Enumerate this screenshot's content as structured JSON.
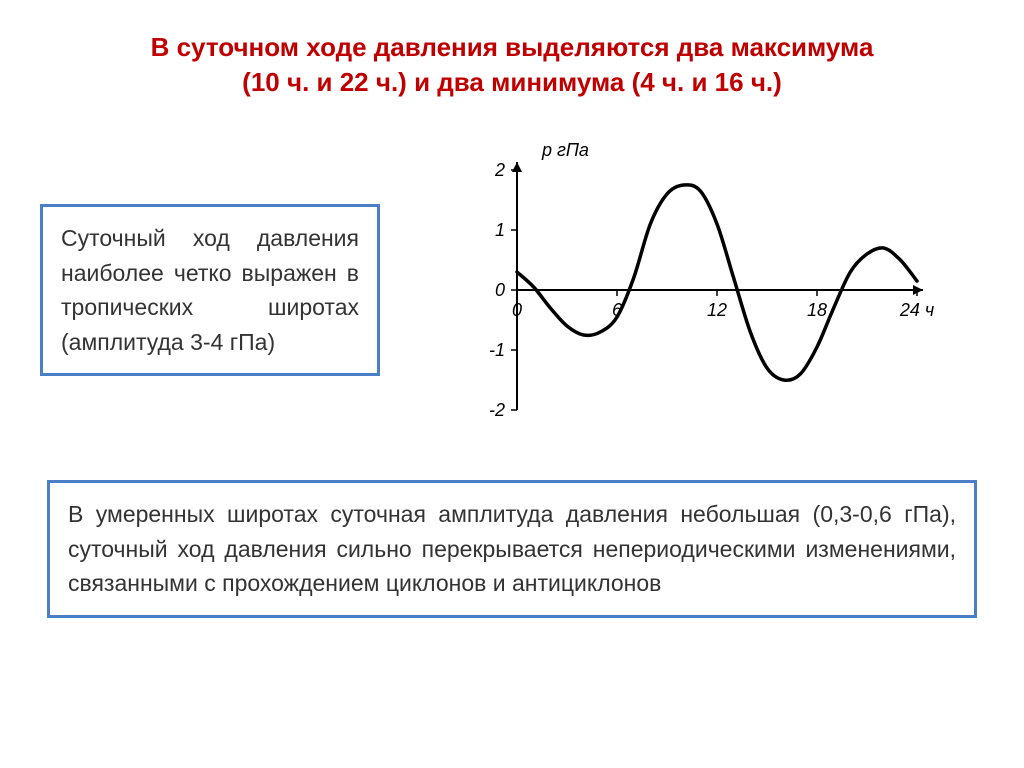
{
  "title_line1": "В суточном ходе давления выделяются два максимума",
  "title_line2": "(10 ч. и 22 ч.) и два минимума (4 ч. и 16 ч.)",
  "box_left": "Суточный ход давления наиболее четко выражен в тропических широтах (амплитуда 3-4 гПа)",
  "box_bottom": "В умеренных широтах суточная амплитуда давления небольшая (0,3-0,6 гПа), суточный ход давления сильно перекрывается непериодическими изменениями, связанными с прохождением циклонов и антициклонов",
  "chart": {
    "type": "line",
    "ylabel": "р гПа",
    "xlabel_suffix": "ч",
    "xlim": [
      0,
      24
    ],
    "ylim": [
      -2,
      2
    ],
    "xticks": [
      0,
      6,
      12,
      18,
      24
    ],
    "yticks": [
      -2,
      -1,
      0,
      1,
      2
    ],
    "line_color": "#000000",
    "line_width": 3.5,
    "axis_color": "#000000",
    "tick_len": 6,
    "background_color": "#ffffff",
    "font_size": 18,
    "data": [
      {
        "x": 0,
        "y": 0.3
      },
      {
        "x": 1,
        "y": 0.05
      },
      {
        "x": 2,
        "y": -0.3
      },
      {
        "x": 3,
        "y": -0.6
      },
      {
        "x": 4,
        "y": -0.75
      },
      {
        "x": 5,
        "y": -0.7
      },
      {
        "x": 6,
        "y": -0.45
      },
      {
        "x": 7,
        "y": 0.2
      },
      {
        "x": 8,
        "y": 1.1
      },
      {
        "x": 9,
        "y": 1.6
      },
      {
        "x": 10,
        "y": 1.75
      },
      {
        "x": 11,
        "y": 1.65
      },
      {
        "x": 12,
        "y": 1.1
      },
      {
        "x": 13,
        "y": 0.2
      },
      {
        "x": 14,
        "y": -0.7
      },
      {
        "x": 15,
        "y": -1.3
      },
      {
        "x": 16,
        "y": -1.5
      },
      {
        "x": 17,
        "y": -1.4
      },
      {
        "x": 18,
        "y": -0.95
      },
      {
        "x": 19,
        "y": -0.3
      },
      {
        "x": 20,
        "y": 0.3
      },
      {
        "x": 21,
        "y": 0.6
      },
      {
        "x": 22,
        "y": 0.7
      },
      {
        "x": 23,
        "y": 0.5
      },
      {
        "x": 24,
        "y": 0.15
      }
    ]
  },
  "colors": {
    "title": "#c00000",
    "box_border": "#4a7fc8",
    "text": "#333333"
  }
}
